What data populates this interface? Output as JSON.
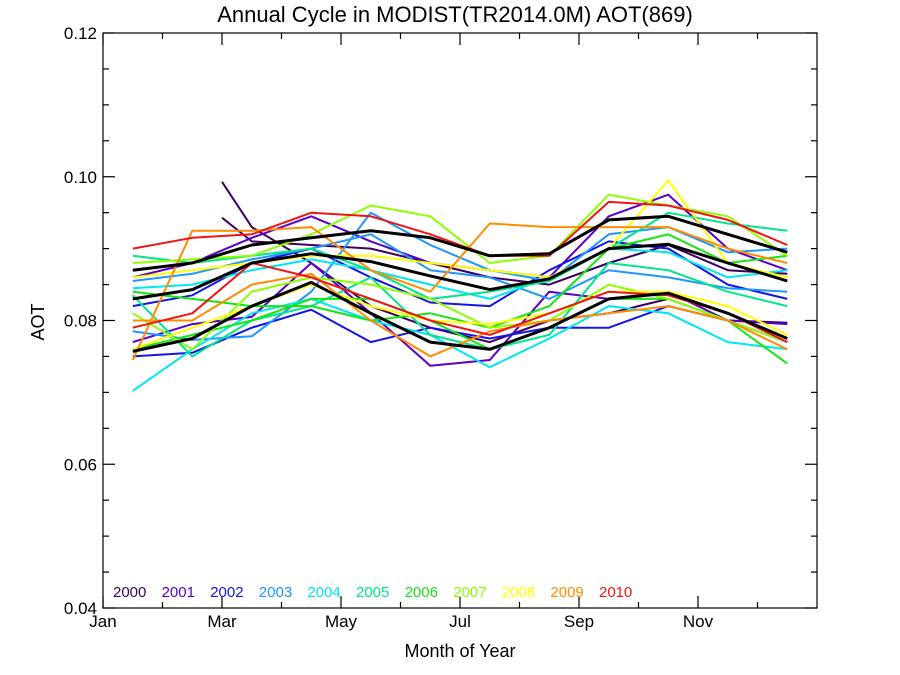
{
  "chart_data": {
    "type": "line",
    "title": "Annual Cycle in MODIST(TR2014.0M) AOT(869)",
    "xlabel": "Month of Year",
    "ylabel": "AOT",
    "xlim": [
      0,
      12
    ],
    "ylim": [
      0.04,
      0.12
    ],
    "x": [
      0.5,
      1.5,
      2.5,
      3.5,
      4.5,
      5.5,
      6.5,
      7.5,
      8.5,
      9.5,
      10.5,
      11.5
    ],
    "x_ticks": [
      {
        "value": 0,
        "label": "Jan"
      },
      {
        "value": 2,
        "label": "Mar"
      },
      {
        "value": 4,
        "label": "May"
      },
      {
        "value": 6,
        "label": "Jul"
      },
      {
        "value": 8,
        "label": "Sep"
      },
      {
        "value": 10,
        "label": "Nov"
      }
    ],
    "x_minor_ticks": [
      1,
      3,
      5,
      7,
      9,
      11
    ],
    "y_ticks": [
      {
        "value": 0.04,
        "label": "0.04"
      },
      {
        "value": 0.06,
        "label": "0.06"
      },
      {
        "value": 0.08,
        "label": "0.08"
      },
      {
        "value": 0.1,
        "label": "0.10"
      },
      {
        "value": 0.12,
        "label": "0.12"
      }
    ],
    "y_minor_step": 0.005,
    "grid": false,
    "legend_position": "bottom-left",
    "series": [
      {
        "name": "2000",
        "color": "#3c0064",
        "width": 2,
        "x": [
          2.0,
          2.5,
          3.5,
          4.5,
          5.5,
          6.5,
          7.5,
          8.5,
          9.5,
          10.5,
          11.5
        ],
        "values": [
          0.0943,
          0.091,
          0.0905,
          0.09,
          0.088,
          0.086,
          0.085,
          0.088,
          0.0905,
          0.087,
          0.0865
        ]
      },
      {
        "name": "2000",
        "color": "#3c0064",
        "width": 2,
        "x": [
          2.0,
          2.5,
          3.5,
          4.5,
          5.5,
          6.5,
          7.5,
          8.5,
          9.5,
          10.5,
          11.5
        ],
        "values": [
          0.0993,
          0.093,
          0.088,
          0.082,
          0.079,
          0.077,
          0.08,
          0.081,
          0.083,
          0.08,
          0.0797
        ]
      },
      {
        "name": "2001",
        "color": "#5a00c8",
        "width": 2,
        "values": [
          0.077,
          0.0795,
          0.0805,
          0.088,
          0.081,
          0.0737,
          0.0745,
          0.084,
          0.083,
          0.084,
          0.08,
          0.0795
        ]
      },
      {
        "name": "2001",
        "color": "#5a00c8",
        "width": 2,
        "values": [
          0.086,
          0.088,
          0.0915,
          0.0945,
          0.091,
          0.088,
          0.087,
          0.086,
          0.0945,
          0.0975,
          0.09,
          0.087
        ]
      },
      {
        "name": "2002",
        "color": "#1414e6",
        "width": 2,
        "values": [
          0.075,
          0.0755,
          0.079,
          0.0815,
          0.077,
          0.079,
          0.0775,
          0.079,
          0.079,
          0.082,
          0.08,
          0.077
        ]
      },
      {
        "name": "2002",
        "color": "#1414e6",
        "width": 2,
        "values": [
          0.082,
          0.0835,
          0.088,
          0.09,
          0.086,
          0.0825,
          0.082,
          0.087,
          0.091,
          0.09,
          0.085,
          0.083
        ]
      },
      {
        "name": "2003",
        "color": "#1e96ff",
        "width": 2,
        "values": [
          0.0855,
          0.0865,
          0.0885,
          0.09,
          0.092,
          0.087,
          0.086,
          0.083,
          0.087,
          0.086,
          0.0845,
          0.084
        ]
      },
      {
        "name": "2003",
        "color": "#1e96ff",
        "width": 2,
        "values": [
          0.0785,
          0.0773,
          0.0778,
          0.084,
          0.095,
          0.0905,
          0.087,
          0.0855,
          0.092,
          0.093,
          0.0895,
          0.09
        ]
      },
      {
        "name": "2004",
        "color": "#00e6f0",
        "width": 2,
        "values": [
          0.0702,
          0.076,
          0.081,
          0.083,
          0.08,
          0.078,
          0.0735,
          0.0775,
          0.082,
          0.081,
          0.077,
          0.076
        ]
      },
      {
        "name": "2004",
        "color": "#00e6f0",
        "width": 2,
        "values": [
          0.0845,
          0.085,
          0.087,
          0.0885,
          0.087,
          0.085,
          0.083,
          0.086,
          0.09,
          0.0895,
          0.086,
          0.087
        ]
      },
      {
        "name": "2005",
        "color": "#00e68c",
        "width": 2,
        "values": [
          0.089,
          0.088,
          0.089,
          0.09,
          0.087,
          0.083,
          0.084,
          0.0855,
          0.09,
          0.095,
          0.0935,
          0.0925
        ]
      },
      {
        "name": "2005",
        "color": "#00e68c",
        "width": 2,
        "values": [
          0.0835,
          0.075,
          0.08,
          0.082,
          0.086,
          0.078,
          0.076,
          0.078,
          0.088,
          0.087,
          0.084,
          0.082
        ]
      },
      {
        "name": "2006",
        "color": "#14e614",
        "width": 2,
        "values": [
          0.084,
          0.083,
          0.082,
          0.082,
          0.08,
          0.081,
          0.079,
          0.082,
          0.09,
          0.092,
          0.088,
          0.089
        ]
      },
      {
        "name": "2006",
        "color": "#14e614",
        "width": 2,
        "values": [
          0.076,
          0.078,
          0.08,
          0.083,
          0.083,
          0.08,
          0.076,
          0.079,
          0.083,
          0.083,
          0.08,
          0.074
        ]
      },
      {
        "name": "2007",
        "color": "#8cff00",
        "width": 2,
        "values": [
          0.088,
          0.0885,
          0.089,
          0.092,
          0.096,
          0.0945,
          0.088,
          0.089,
          0.0975,
          0.096,
          0.0945,
          0.089
        ]
      },
      {
        "name": "2007",
        "color": "#8cff00",
        "width": 2,
        "values": [
          0.081,
          0.076,
          0.084,
          0.086,
          0.085,
          0.083,
          0.079,
          0.08,
          0.085,
          0.083,
          0.08,
          0.077
        ]
      },
      {
        "name": "2008",
        "color": "#ffff00",
        "width": 2,
        "values": [
          0.086,
          0.087,
          0.088,
          0.089,
          0.089,
          0.088,
          0.087,
          0.086,
          0.09,
          0.0995,
          0.088,
          0.086
        ]
      },
      {
        "name": "2008",
        "color": "#ffff00",
        "width": 2,
        "values": [
          0.076,
          0.079,
          0.082,
          0.085,
          0.082,
          0.08,
          0.0795,
          0.081,
          0.084,
          0.084,
          0.082,
          0.078
        ]
      },
      {
        "name": "2009",
        "color": "#ff8c00",
        "width": 2,
        "values": [
          0.0745,
          0.0925,
          0.0925,
          0.093,
          0.087,
          0.084,
          0.0935,
          0.093,
          0.093,
          0.093,
          0.09,
          0.088
        ]
      },
      {
        "name": "2009",
        "color": "#ff8c00",
        "width": 2,
        "values": [
          0.08,
          0.08,
          0.085,
          0.0865,
          0.08,
          0.075,
          0.0785,
          0.08,
          0.081,
          0.082,
          0.08,
          0.076
        ]
      },
      {
        "name": "2010",
        "color": "#f01414",
        "width": 2,
        "values": [
          0.09,
          0.0915,
          0.092,
          0.095,
          0.0945,
          0.092,
          0.089,
          0.089,
          0.0965,
          0.096,
          0.094,
          0.0905
        ]
      },
      {
        "name": "2010",
        "color": "#f01414",
        "width": 2,
        "values": [
          0.079,
          0.081,
          0.088,
          0.086,
          0.083,
          0.08,
          0.078,
          0.081,
          0.084,
          0.0835,
          0.081,
          0.077
        ]
      },
      {
        "name": "",
        "color": "#000000",
        "width": 3,
        "values": [
          0.087,
          0.088,
          0.0905,
          0.0915,
          0.0925,
          0.0915,
          0.089,
          0.0893,
          0.094,
          0.0945,
          0.092,
          0.0895
        ]
      },
      {
        "name": "",
        "color": "#000000",
        "width": 3,
        "values": [
          0.083,
          0.0843,
          0.088,
          0.0893,
          0.0882,
          0.0862,
          0.0843,
          0.0858,
          0.09,
          0.0906,
          0.088,
          0.0855
        ]
      },
      {
        "name": "",
        "color": "#000000",
        "width": 3,
        "values": [
          0.0757,
          0.0775,
          0.082,
          0.0853,
          0.081,
          0.077,
          0.076,
          0.079,
          0.083,
          0.0838,
          0.081,
          0.0775
        ]
      }
    ],
    "legend": [
      {
        "label": "2000",
        "color": "#3c0064"
      },
      {
        "label": "2001",
        "color": "#5a00c8"
      },
      {
        "label": "2002",
        "color": "#1414e6"
      },
      {
        "label": "2003",
        "color": "#1e96ff"
      },
      {
        "label": "2004",
        "color": "#00e6f0"
      },
      {
        "label": "2005",
        "color": "#00e68c"
      },
      {
        "label": "2006",
        "color": "#14e614"
      },
      {
        "label": "2007",
        "color": "#8cff00"
      },
      {
        "label": "2008",
        "color": "#ffff00"
      },
      {
        "label": "2009",
        "color": "#ff8c00"
      },
      {
        "label": "2010",
        "color": "#f01414"
      }
    ]
  }
}
